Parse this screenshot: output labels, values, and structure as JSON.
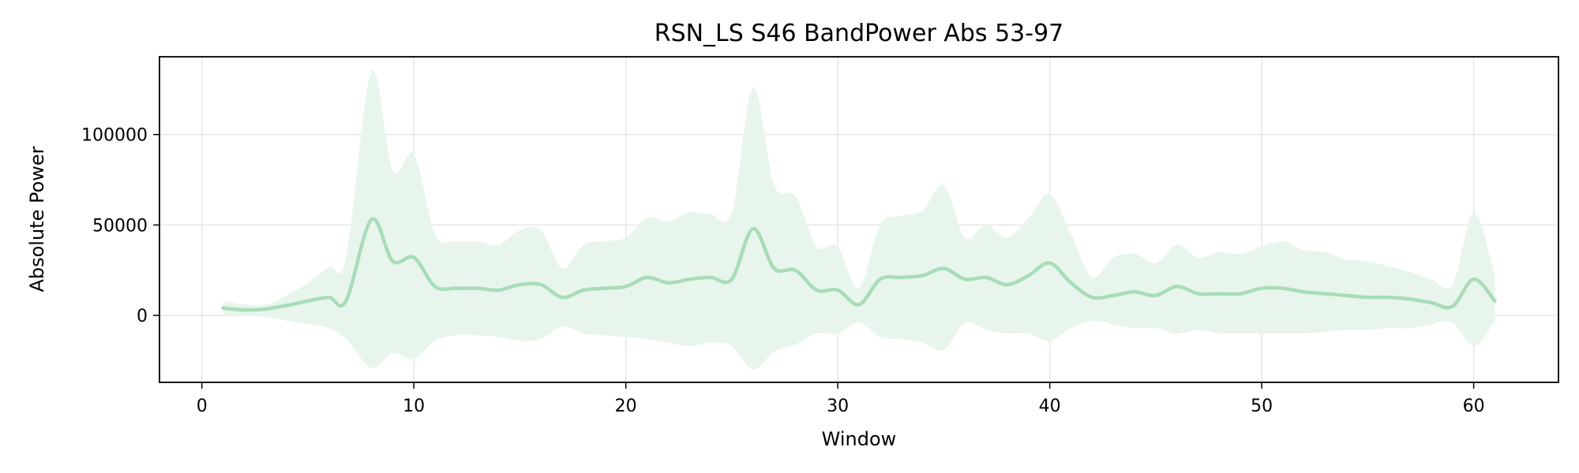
{
  "chart_data": {
    "type": "line",
    "title": "RSN_LS S46 BandPower Abs 53-97",
    "xlabel": "Window",
    "ylabel": "Absolute Power",
    "xlim": [
      -2,
      64
    ],
    "ylim": [
      -37000,
      143000
    ],
    "xticks": [
      0,
      10,
      20,
      30,
      40,
      50,
      60
    ],
    "yticks": [
      0,
      50000,
      100000
    ],
    "grid": true,
    "colors": {
      "line": "#a8dcb9",
      "band": "#e8f5ec",
      "grid": "#e6e6e6",
      "axis": "#000000"
    },
    "series": [
      {
        "x": [
          1,
          2,
          3,
          4,
          5,
          6,
          6.8,
          8,
          9,
          10,
          11,
          12,
          13,
          14,
          15,
          16,
          17,
          18,
          19,
          20,
          21,
          22,
          23,
          24,
          25,
          26,
          27,
          28,
          29,
          30,
          31,
          32,
          33,
          34,
          35,
          36,
          37,
          38,
          39,
          40,
          41,
          42,
          43,
          44,
          45,
          46,
          47,
          48,
          49,
          50,
          51,
          52,
          53,
          54,
          55,
          56,
          57,
          58,
          59,
          60,
          61
        ],
        "mean": [
          4000,
          3000,
          3500,
          5500,
          8000,
          10000,
          8000,
          53000,
          30000,
          32000,
          16000,
          15000,
          15000,
          14000,
          17000,
          17000,
          10000,
          14000,
          15000,
          16000,
          21000,
          18000,
          20000,
          21000,
          20000,
          48000,
          26000,
          25000,
          14000,
          14000,
          6000,
          20000,
          21000,
          22000,
          26000,
          20000,
          21000,
          17000,
          22000,
          29000,
          18000,
          10000,
          11000,
          13000,
          11000,
          16000,
          12000,
          12000,
          12000,
          15000,
          15000,
          13000,
          12000,
          11000,
          10000,
          10000,
          9000,
          7000,
          5000,
          20000,
          8000
        ],
        "upper": [
          8000,
          6000,
          6000,
          11000,
          18000,
          27000,
          32000,
          135000,
          80000,
          89000,
          45000,
          41000,
          41000,
          39000,
          47000,
          47000,
          26000,
          39000,
          41000,
          43000,
          54000,
          52000,
          57000,
          56000,
          57000,
          126000,
          72000,
          66000,
          38000,
          38000,
          15000,
          50000,
          55000,
          58000,
          72000,
          43000,
          50000,
          43000,
          54000,
          67000,
          45000,
          21000,
          32000,
          34000,
          29000,
          39000,
          32000,
          35000,
          34000,
          38000,
          41000,
          36000,
          35000,
          31000,
          30000,
          27000,
          24000,
          20000,
          17000,
          57000,
          22000
        ],
        "lower": [
          0,
          0,
          -1000,
          -3000,
          -5000,
          -7000,
          -13000,
          -29000,
          -21000,
          -24000,
          -14000,
          -11000,
          -11000,
          -12000,
          -14000,
          -13000,
          -6000,
          -10000,
          -11000,
          -12000,
          -13000,
          -15000,
          -17000,
          -15000,
          -17000,
          -30000,
          -20000,
          -16000,
          -10000,
          -10000,
          -4000,
          -12000,
          -13000,
          -15000,
          -19000,
          -4000,
          -8000,
          -10000,
          -10000,
          -14000,
          -7000,
          -3000,
          -5000,
          -7000,
          -7000,
          -10000,
          -8000,
          -10000,
          -10000,
          -10000,
          -10000,
          -10000,
          -9000,
          -8000,
          -8000,
          -7000,
          -7000,
          -5000,
          -4000,
          -17000,
          -3000
        ]
      }
    ]
  }
}
